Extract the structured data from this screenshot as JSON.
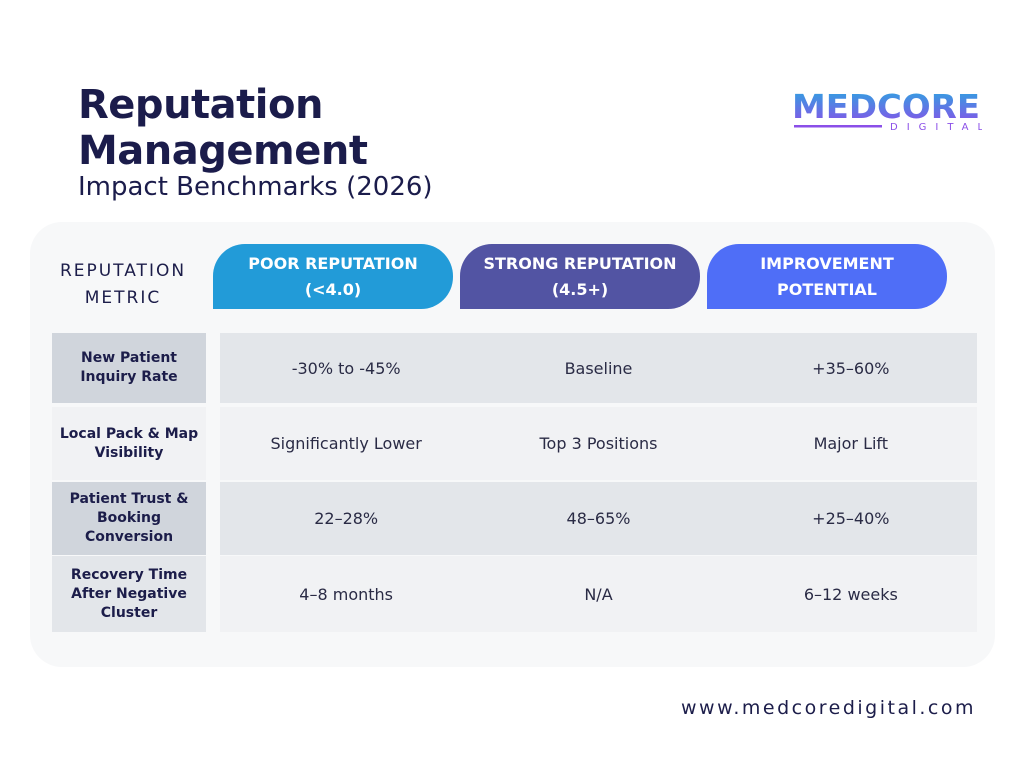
{
  "title_line1": "Reputation",
  "title_line2": "Management",
  "subtitle": "Impact Benchmarks (2026)",
  "logo": {
    "main": "MEDCORE",
    "sub": "DIGITAL"
  },
  "table": {
    "metric_header_line1": "REPUTATION",
    "metric_header_line2": "METRIC",
    "columns": [
      {
        "line1": "POOR REPUTATION",
        "line2": "(<4.0)",
        "color": "#229bd8"
      },
      {
        "line1": "STRONG REPUTATION",
        "line2": "(4.5+)",
        "color": "#5254a3"
      },
      {
        "line1": "IMPROVEMENT",
        "line2": "POTENTIAL",
        "color": "#4f6ef7"
      }
    ],
    "rows": [
      {
        "label": "New Patient Inquiry Rate",
        "values": [
          "-30% to -45%",
          "Baseline",
          "+35–60%"
        ]
      },
      {
        "label": "Local Pack & Map Visibility",
        "values": [
          "Significantly Lower",
          "Top 3 Positions",
          "Major Lift"
        ]
      },
      {
        "label": "Patient Trust & Booking Conversion",
        "values": [
          "22–28%",
          "48–65%",
          "+25–40%"
        ]
      },
      {
        "label": "Recovery Time After Negative Cluster",
        "values": [
          "4–8 months",
          "N/A",
          "6–12 weeks"
        ]
      }
    ]
  },
  "footer_url": "www.medcoredigital.com"
}
